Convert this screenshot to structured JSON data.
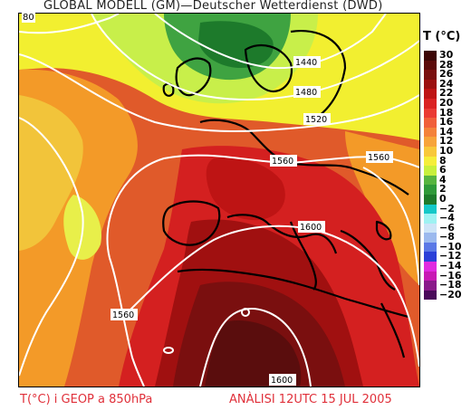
{
  "header": {
    "title": "GLOBAL MODELL (GM)—Deutscher Wetterdienst (DWD)"
  },
  "map": {
    "corner_label": "80",
    "contour_labels": [
      "1440",
      "1480",
      "1520",
      "1560",
      "1560",
      "1560",
      "1600",
      "1600"
    ],
    "temperature_colors": {
      "very_hot": "#5a0d0d",
      "hot": "#a01010",
      "warm": "#d42020",
      "mild": "#e05a2a",
      "orange": "#f39a28",
      "yellow": "#f2ef30",
      "light_green": "#c8ef4a",
      "green": "#3fa341",
      "dark_green": "#1d7a2b"
    },
    "contour_color": "#ffffff",
    "coast_color": "#000000"
  },
  "legend": {
    "title": "T (°C)",
    "items": [
      {
        "label": "30",
        "color": "#3c0505"
      },
      {
        "label": "28",
        "color": "#5c0a0a"
      },
      {
        "label": "26",
        "color": "#7a0f0f"
      },
      {
        "label": "24",
        "color": "#9c1010"
      },
      {
        "label": "22",
        "color": "#be1414"
      },
      {
        "label": "20",
        "color": "#da2222"
      },
      {
        "label": "18",
        "color": "#ea3a34"
      },
      {
        "label": "16",
        "color": "#f05f3a"
      },
      {
        "label": "14",
        "color": "#f4823a"
      },
      {
        "label": "12",
        "color": "#f7a43a"
      },
      {
        "label": "10",
        "color": "#f8c83a"
      },
      {
        "label": "8",
        "color": "#f5ee3a"
      },
      {
        "label": "6",
        "color": "#c8f03c"
      },
      {
        "label": "4",
        "color": "#57b540"
      },
      {
        "label": "2",
        "color": "#2f9a3a"
      },
      {
        "label": "0",
        "color": "#1d7a2b"
      },
      {
        "label": "−2",
        "color": "#14c8c8"
      },
      {
        "label": "−4",
        "color": "#9ef2f2"
      },
      {
        "label": "−6",
        "color": "#cde4f7"
      },
      {
        "label": "−8",
        "color": "#9bb9ee"
      },
      {
        "label": "−10",
        "color": "#5a78e6"
      },
      {
        "label": "−12",
        "color": "#2a3fd8"
      },
      {
        "label": "−14",
        "color": "#e02ae0"
      },
      {
        "label": "−16",
        "color": "#c81ab4"
      },
      {
        "label": "−18",
        "color": "#8a1a8a"
      },
      {
        "label": "−20",
        "color": "#4a0a5a"
      }
    ]
  },
  "footer": {
    "variable": "T(°C) i GEOP a 850hPa",
    "analysis": "ANÀLISI 12UTC 15 JUL 2005"
  }
}
